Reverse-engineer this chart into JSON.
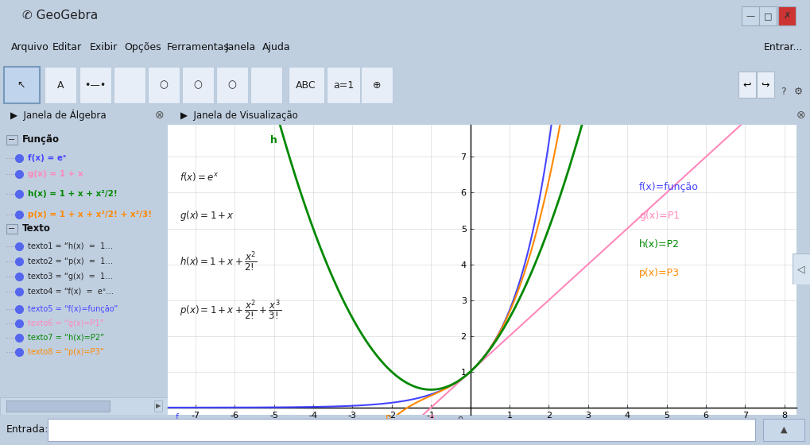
{
  "title": "GeoGebra",
  "bg_outer": "#c0cfe0",
  "bg_title": "#d8e4f0",
  "bg_menu": "#e8eef8",
  "bg_toolbar": "#e8eef8",
  "bg_panel": "#dce8f5",
  "bg_panel_header": "#c8d8ea",
  "bg_plot": "#ffffff",
  "bg_status": "#d8e4f0",
  "colors": {
    "f": "#4444ff",
    "g": "#ff88bb",
    "h": "#008800",
    "p": "#ff8800"
  },
  "x_min": -7.7,
  "x_max": 8.3,
  "y_min": -0.2,
  "y_max": 7.9,
  "x_ticks": [
    -7,
    -6,
    -5,
    -4,
    -3,
    -2,
    -1,
    1,
    2,
    3,
    4,
    5,
    6,
    7,
    8
  ],
  "y_ticks": [
    1,
    2,
    3,
    4,
    5,
    6,
    7
  ],
  "legend_labels": [
    "f(x)=função",
    "g(x)=P1",
    "h(x)=P2",
    "p(x)=P3"
  ],
  "legend_colors": [
    "#4444ff",
    "#ff88bb",
    "#008800",
    "#ff8800"
  ]
}
